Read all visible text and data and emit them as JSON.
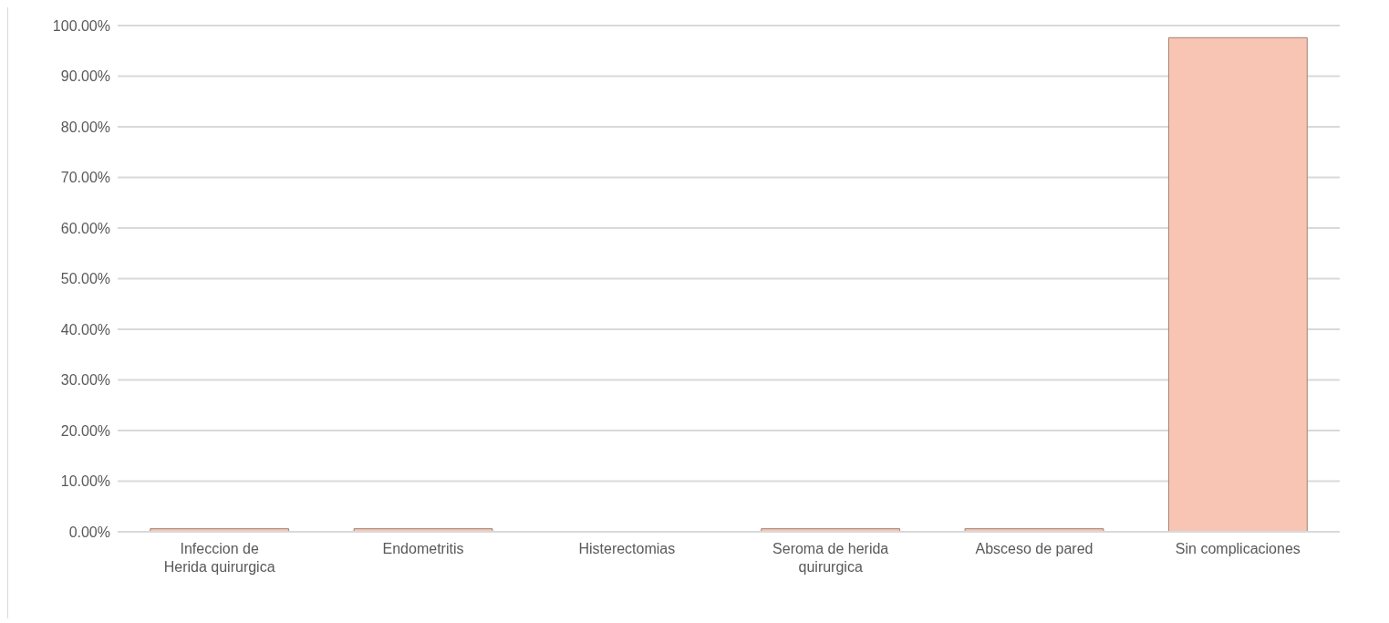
{
  "chart_data": {
    "type": "bar",
    "categories": [
      "Infeccion de Herida quirurgica",
      "Endometritis",
      "Histerectomias",
      "Seroma de herida quirurgica",
      "Absceso de pared",
      "Sin complicaciones"
    ],
    "values": [
      0.6,
      0.6,
      0,
      0.6,
      0.6,
      97.6
    ],
    "color": "#f8c5b4",
    "ylim": [
      0,
      100
    ],
    "yticks": [
      {
        "value": 0,
        "label": "0.00%"
      },
      {
        "value": 10,
        "label": "10.00%"
      },
      {
        "value": 20,
        "label": "20.00%"
      },
      {
        "value": 30,
        "label": "30.00%"
      },
      {
        "value": 40,
        "label": "40.00%"
      },
      {
        "value": 50,
        "label": "50.00%"
      },
      {
        "value": 60,
        "label": "60.00%"
      },
      {
        "value": 70,
        "label": "70.00%"
      },
      {
        "value": 80,
        "label": "80.00%"
      },
      {
        "value": 90,
        "label": "90.00%"
      },
      {
        "value": 100,
        "label": "100.00%"
      }
    ],
    "grid": "y",
    "legend": false
  }
}
